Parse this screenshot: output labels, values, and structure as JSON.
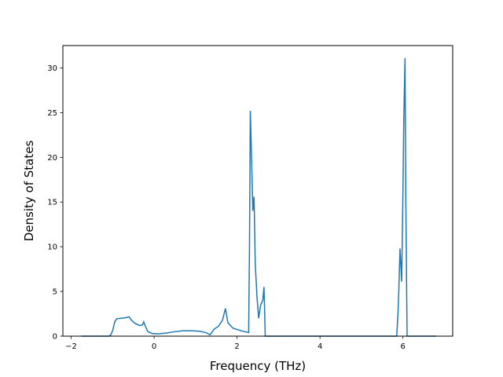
{
  "chart_data": {
    "type": "line",
    "title": "",
    "xlabel": "Frequency (THz)",
    "ylabel": "Density of States",
    "xlim": [
      -2.2,
      7.2
    ],
    "ylim": [
      0,
      32.5
    ],
    "x_ticks": [
      -2,
      0,
      2,
      4,
      6
    ],
    "y_ticks": [
      0,
      5,
      10,
      15,
      20,
      25,
      30
    ],
    "grid": false,
    "legend": "none",
    "series": [
      {
        "color": "#1f77b4",
        "points": [
          [
            -1.75,
            0
          ],
          [
            -1.1,
            0
          ],
          [
            -1.05,
            0.1
          ],
          [
            -1.0,
            0.6
          ],
          [
            -0.95,
            1.6
          ],
          [
            -0.9,
            1.95
          ],
          [
            -0.8,
            2.0
          ],
          [
            -0.7,
            2.05
          ],
          [
            -0.6,
            2.15
          ],
          [
            -0.55,
            1.8
          ],
          [
            -0.45,
            1.4
          ],
          [
            -0.35,
            1.2
          ],
          [
            -0.28,
            1.25
          ],
          [
            -0.25,
            1.6
          ],
          [
            -0.22,
            1.2
          ],
          [
            -0.15,
            0.5
          ],
          [
            -0.05,
            0.3
          ],
          [
            0.1,
            0.25
          ],
          [
            0.3,
            0.35
          ],
          [
            0.5,
            0.5
          ],
          [
            0.7,
            0.6
          ],
          [
            0.9,
            0.6
          ],
          [
            1.1,
            0.55
          ],
          [
            1.25,
            0.4
          ],
          [
            1.35,
            0.15
          ],
          [
            1.45,
            0.8
          ],
          [
            1.55,
            1.1
          ],
          [
            1.65,
            1.8
          ],
          [
            1.72,
            3.1
          ],
          [
            1.78,
            1.5
          ],
          [
            1.9,
            0.9
          ],
          [
            2.1,
            0.6
          ],
          [
            2.28,
            0.4
          ],
          [
            2.3,
            10.0
          ],
          [
            2.32,
            25.2
          ],
          [
            2.35,
            20.0
          ],
          [
            2.38,
            14.0
          ],
          [
            2.41,
            15.6
          ],
          [
            2.44,
            8.0
          ],
          [
            2.48,
            4.5
          ],
          [
            2.52,
            2.0
          ],
          [
            2.57,
            3.5
          ],
          [
            2.62,
            4.0
          ],
          [
            2.65,
            5.5
          ],
          [
            2.68,
            0
          ],
          [
            5.85,
            0
          ],
          [
            5.88,
            2.5
          ],
          [
            5.9,
            5.0
          ],
          [
            5.93,
            9.8
          ],
          [
            5.97,
            6.1
          ],
          [
            6.0,
            16.0
          ],
          [
            6.02,
            24.0
          ],
          [
            6.05,
            31.1
          ],
          [
            6.07,
            15.0
          ],
          [
            6.1,
            0
          ],
          [
            6.8,
            0
          ]
        ]
      }
    ]
  }
}
